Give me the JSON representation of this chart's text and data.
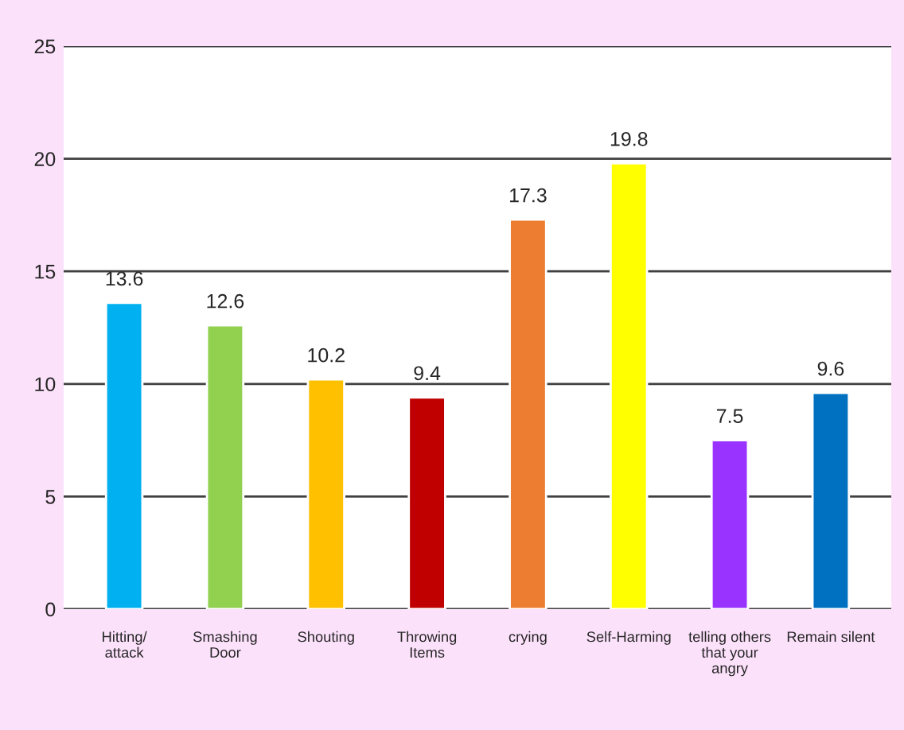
{
  "chart_data": {
    "type": "bar",
    "categories": [
      "Hitting/\nattack",
      "Smashing\nDoor",
      "Shouting",
      "Throwing\nItems",
      "crying",
      "Self-Harming",
      "telling others\nthat your\nangry",
      "Remain silent"
    ],
    "values": [
      13.6,
      12.6,
      10.2,
      9.4,
      17.3,
      19.8,
      7.5,
      9.6
    ],
    "colors": [
      "#00b0f0",
      "#92d050",
      "#ffc000",
      "#c00000",
      "#ed7d31",
      "#ffff00",
      "#9933ff",
      "#0070c0"
    ],
    "ylim": [
      0,
      25
    ],
    "yticks": [
      0,
      5,
      10,
      15,
      20,
      25
    ],
    "grid": "y",
    "data_labels": true
  }
}
